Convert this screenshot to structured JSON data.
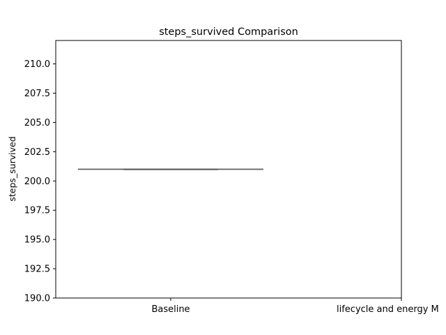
{
  "chart_data": {
    "type": "box",
    "title": "steps_survived Comparison",
    "xlabel": "",
    "ylabel": "steps_survived",
    "categories": [
      "Baseline",
      "lifecycle and energy M"
    ],
    "ylim": [
      190.0,
      212.0
    ],
    "yticks": [
      190.0,
      192.5,
      195.0,
      197.5,
      200.0,
      202.5,
      205.0,
      207.5,
      210.0
    ],
    "ytick_labels": [
      "190.0",
      "192.5",
      "195.0",
      "197.5",
      "200.0",
      "202.5",
      "205.0",
      "207.5",
      "210.0"
    ],
    "series": [
      {
        "category": "Baseline",
        "min": 201.0,
        "q1": 201.0,
        "median": 201.0,
        "q3": 201.0,
        "max": 201.0
      }
    ],
    "grid": false,
    "colors": {
      "box": "#5f5f5f",
      "axes": "#000000",
      "background": "#ffffff"
    }
  }
}
